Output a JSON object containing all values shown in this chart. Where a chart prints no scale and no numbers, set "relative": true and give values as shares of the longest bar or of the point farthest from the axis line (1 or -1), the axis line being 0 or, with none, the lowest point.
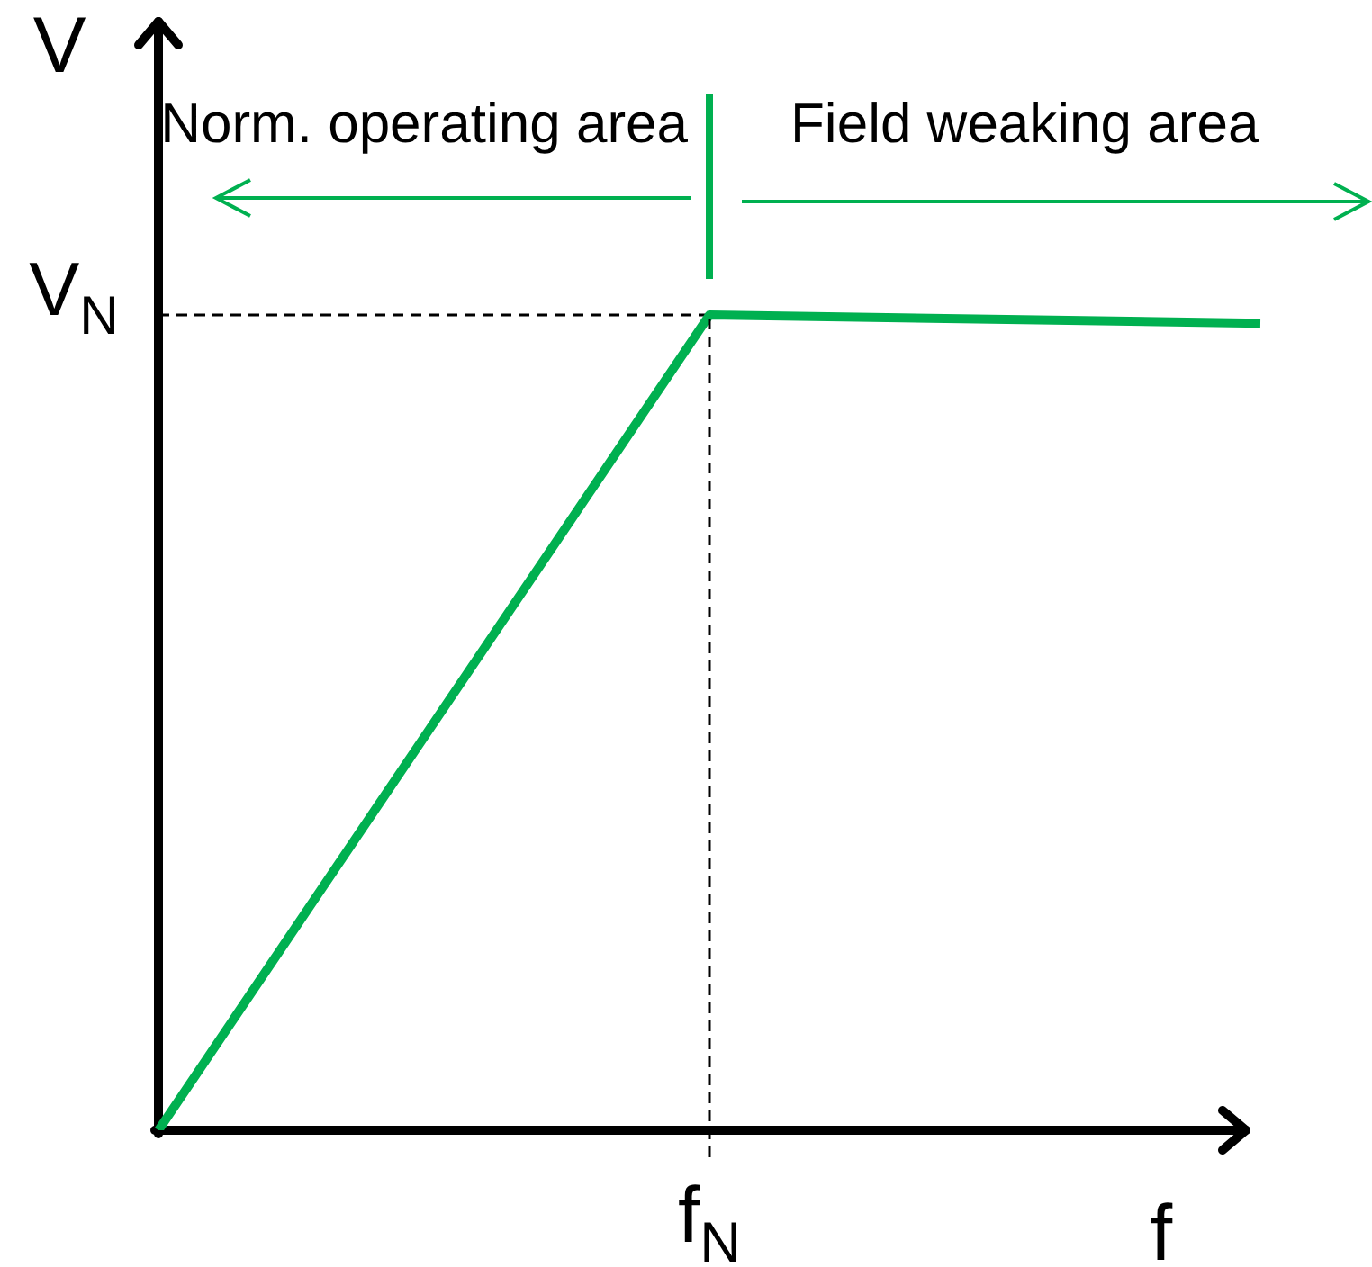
{
  "chart_data": {
    "type": "line",
    "xlabel": "f",
    "ylabel": "V",
    "annotations": [
      "Norm. operating area",
      "Field weaking area",
      "f$_{N}$"
    ],
    "categories": [
      null,
      null,
      null
    ],
    "values": [
      0,
      1,
      0.99
    ],
    "color": "#00b050",
    "relative": true,
    "ref_lines": [
      {
        "axis": "y",
        "value": 1,
        "label": "V$_{N}$",
        "color": "#000000",
        "line_style": "dashed"
      }
    ],
    "legend": false
  }
}
